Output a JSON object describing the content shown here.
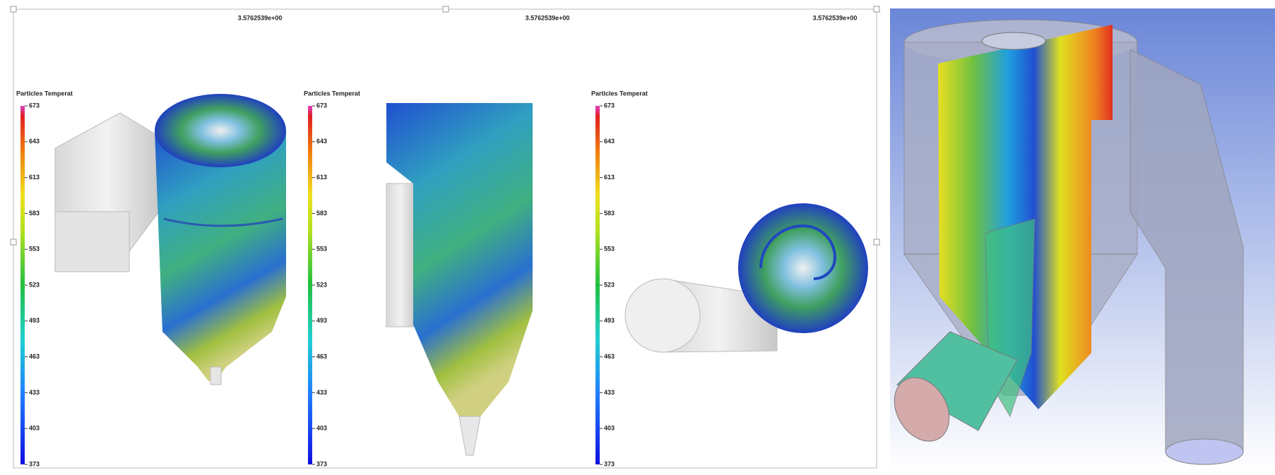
{
  "views": [
    {
      "time": "3.5762539e+00",
      "legend_title": "Particles Temperat",
      "ticks": [
        "673",
        "643",
        "613",
        "583",
        "553",
        "523",
        "493",
        "463",
        "433",
        "403",
        "373"
      ]
    },
    {
      "time": "3.5762539e+00",
      "legend_title": "Particles Temperat",
      "ticks": [
        "673",
        "643",
        "613",
        "583",
        "553",
        "523",
        "493",
        "463",
        "433",
        "403",
        "373"
      ]
    },
    {
      "time": "3.5762539e+00",
      "legend_title": "Particles Temperat",
      "ticks": [
        "673",
        "643",
        "613",
        "583",
        "553",
        "523",
        "493",
        "463",
        "433",
        "403",
        "373"
      ]
    }
  ]
}
